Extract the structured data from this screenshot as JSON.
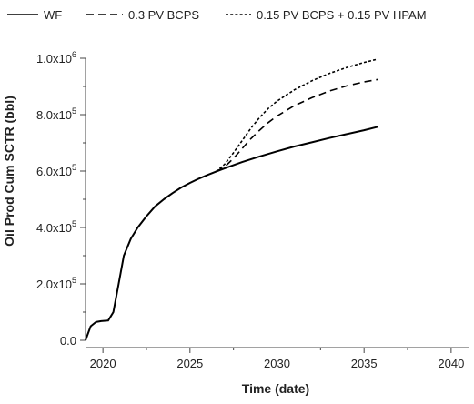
{
  "chart_data": {
    "type": "line",
    "title": "",
    "xlabel": "Time (date)",
    "ylabel": "Oil Prod Cum SCTR (bbl)",
    "xlim": [
      2019,
      2041
    ],
    "ylim": [
      0,
      1000000
    ],
    "x_ticks": [
      2020,
      2025,
      2030,
      2035,
      2040
    ],
    "y_ticks": [
      {
        "value": 0,
        "label": "0.0"
      },
      {
        "value": 200000,
        "label": "2.0x10",
        "exp": "5"
      },
      {
        "value": 400000,
        "label": "4.0x10",
        "exp": "5"
      },
      {
        "value": 600000,
        "label": "6.0x10",
        "exp": "5"
      },
      {
        "value": 800000,
        "label": "8.0x10",
        "exp": "5"
      },
      {
        "value": 1000000,
        "label": "1.0x10",
        "exp": "6"
      }
    ],
    "legend_position": "top",
    "series": [
      {
        "name": "WF",
        "style": "solid",
        "color": "#000000",
        "points": [
          [
            2019.0,
            0
          ],
          [
            2019.3,
            50000
          ],
          [
            2019.6,
            65000
          ],
          [
            2019.9,
            68000
          ],
          [
            2020.3,
            70000
          ],
          [
            2020.6,
            100000
          ],
          [
            2020.9,
            200000
          ],
          [
            2021.2,
            300000
          ],
          [
            2021.6,
            360000
          ],
          [
            2022.0,
            400000
          ],
          [
            2022.5,
            440000
          ],
          [
            2023.0,
            475000
          ],
          [
            2023.5,
            500000
          ],
          [
            2024.0,
            522000
          ],
          [
            2024.5,
            542000
          ],
          [
            2025.0,
            558000
          ],
          [
            2025.5,
            573000
          ],
          [
            2026.0,
            586000
          ],
          [
            2026.5,
            598000
          ],
          [
            2027.0,
            610000
          ],
          [
            2028.0,
            632000
          ],
          [
            2029.0,
            652000
          ],
          [
            2030.0,
            670000
          ],
          [
            2031.0,
            687000
          ],
          [
            2032.0,
            702000
          ],
          [
            2033.0,
            717000
          ],
          [
            2034.0,
            731000
          ],
          [
            2035.0,
            745000
          ],
          [
            2035.8,
            757000
          ]
        ]
      },
      {
        "name": "0.3 PV BCPS",
        "style": "dashed",
        "color": "#000000",
        "points": [
          [
            2026.5,
            598000
          ],
          [
            2027.0,
            615000
          ],
          [
            2027.5,
            645000
          ],
          [
            2028.0,
            680000
          ],
          [
            2028.5,
            715000
          ],
          [
            2029.0,
            745000
          ],
          [
            2029.5,
            772000
          ],
          [
            2030.0,
            795000
          ],
          [
            2031.0,
            832000
          ],
          [
            2032.0,
            860000
          ],
          [
            2033.0,
            884000
          ],
          [
            2034.0,
            902000
          ],
          [
            2035.0,
            916000
          ],
          [
            2035.8,
            925000
          ]
        ]
      },
      {
        "name": "0.15 PV BCPS + 0.15 PV HPAM",
        "style": "dotted",
        "color": "#000000",
        "points": [
          [
            2026.5,
            598000
          ],
          [
            2027.0,
            625000
          ],
          [
            2027.5,
            665000
          ],
          [
            2028.0,
            708000
          ],
          [
            2028.5,
            752000
          ],
          [
            2029.0,
            790000
          ],
          [
            2029.5,
            822000
          ],
          [
            2030.0,
            848000
          ],
          [
            2031.0,
            888000
          ],
          [
            2032.0,
            920000
          ],
          [
            2033.0,
            946000
          ],
          [
            2034.0,
            967000
          ],
          [
            2035.0,
            985000
          ],
          [
            2035.8,
            997000
          ]
        ]
      }
    ]
  }
}
